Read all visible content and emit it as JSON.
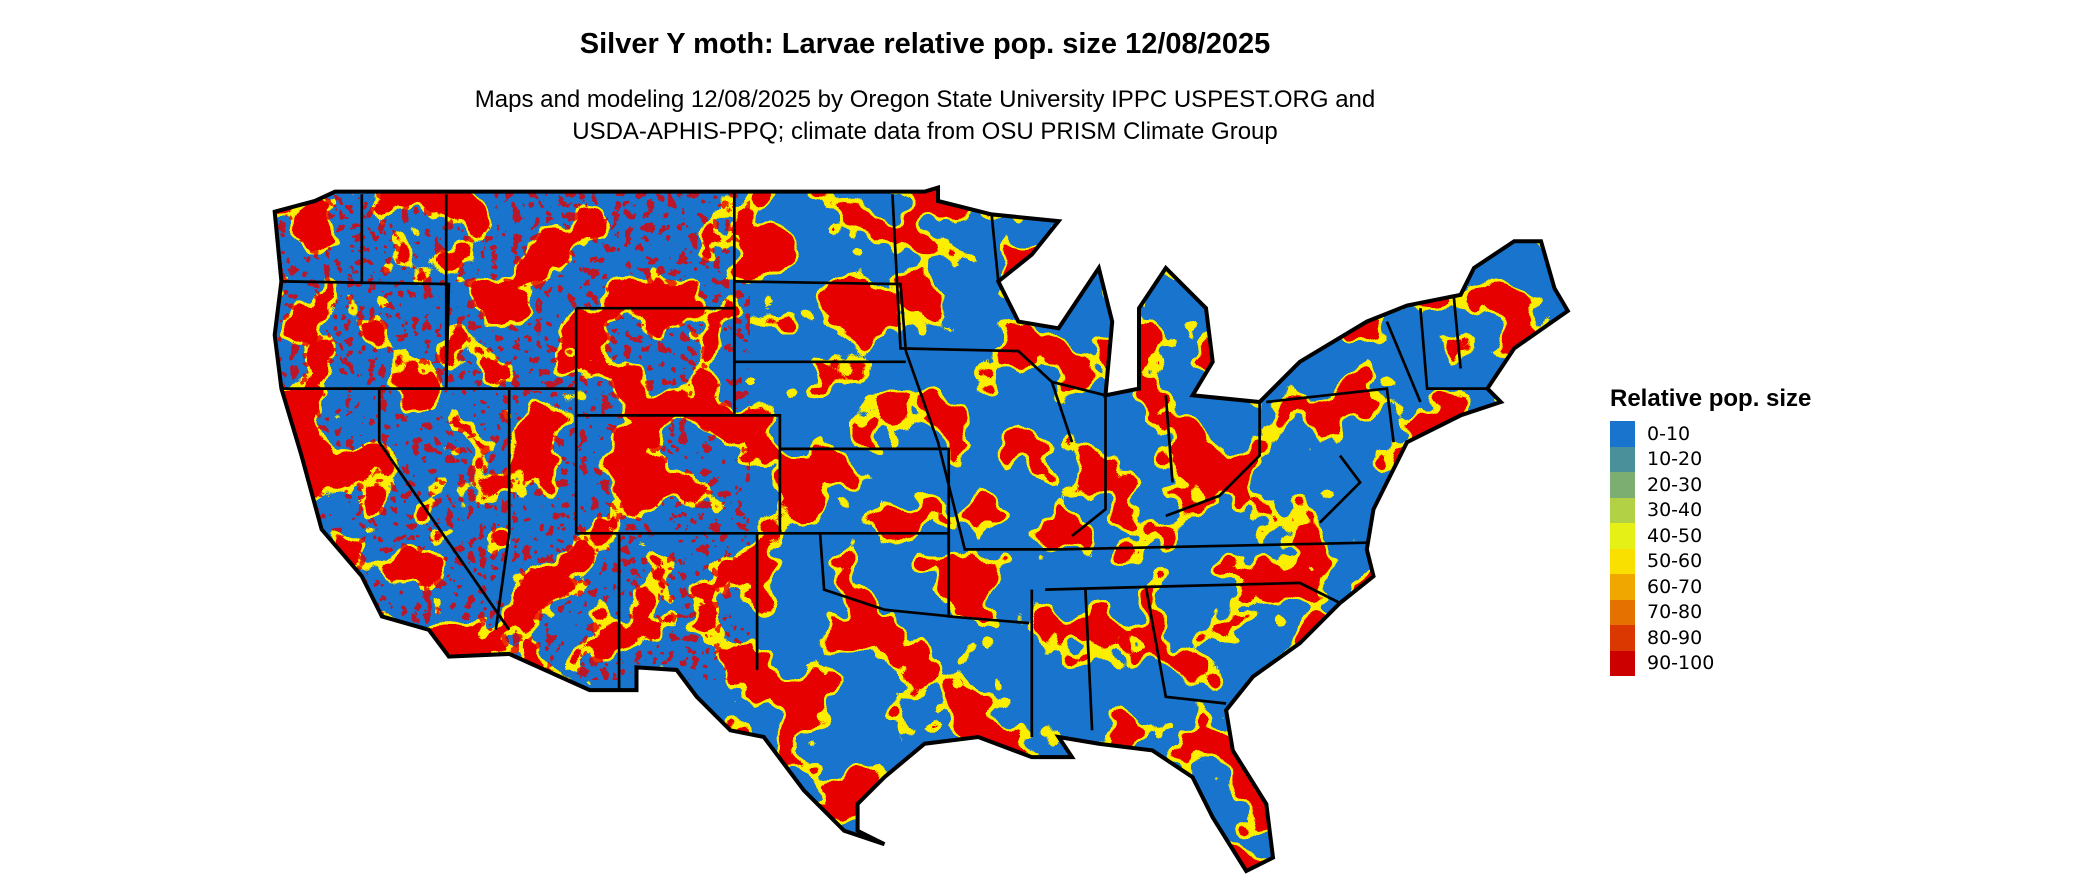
{
  "title": "Silver Y moth: Larvae relative pop. size 12/08/2025",
  "subtitle_line1": "Maps and modeling 12/08/2025 by Oregon State University IPPC USPEST.ORG and",
  "subtitle_line2": "USDA-APHIS-PPQ; climate data from OSU PRISM Climate Group",
  "legend": {
    "title": "Relative pop. size",
    "items": [
      {
        "label": "0-10",
        "color": "#1874CD"
      },
      {
        "label": "10-20",
        "color": "#4A909A"
      },
      {
        "label": "20-30",
        "color": "#7CAE72"
      },
      {
        "label": "30-40",
        "color": "#B2D145"
      },
      {
        "label": "40-50",
        "color": "#E5F017"
      },
      {
        "label": "50-60",
        "color": "#FAE000"
      },
      {
        "label": "60-70",
        "color": "#F0A800"
      },
      {
        "label": "70-80",
        "color": "#E57200"
      },
      {
        "label": "80-90",
        "color": "#DA3800"
      },
      {
        "label": "90-100",
        "color": "#CD0000"
      }
    ]
  },
  "map": {
    "region": "Contiguous United States",
    "border_color": "#000000"
  }
}
